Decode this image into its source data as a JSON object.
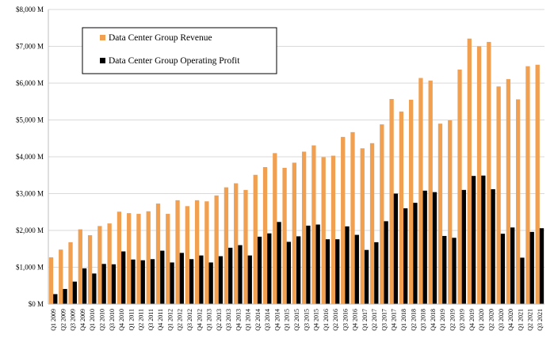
{
  "chart_data": {
    "type": "bar",
    "title": "",
    "xlabel": "",
    "ylabel": "",
    "ylim": [
      0,
      8000
    ],
    "y_ticks": [
      "$0 M",
      "$1,000 M",
      "$2,000 M",
      "$3,000 M",
      "$4,000 M",
      "$5,000 M",
      "$6,000 M",
      "$7,000 M",
      "$8,000 M"
    ],
    "y_tick_values": [
      0,
      1000,
      2000,
      3000,
      4000,
      5000,
      6000,
      7000,
      8000
    ],
    "grid": true,
    "legend_position": "top-left",
    "categories": [
      "Q1 2009",
      "Q2 2009",
      "Q3 2009",
      "Q4 2009",
      "Q1 2010",
      "Q2 2010",
      "Q3 2010",
      "Q4 2010",
      "Q1 2011",
      "Q2 2011",
      "Q3 2011",
      "Q4 2011",
      "Q1 2012",
      "Q2 2012",
      "Q3 2012",
      "Q4 2012",
      "Q1 2013",
      "Q2 2013",
      "Q3 2013",
      "Q4 2013",
      "Q1 2014",
      "Q2 2014",
      "Q3 2014",
      "Q4 2014",
      "Q1 2015",
      "Q2 2015",
      "Q3 2015",
      "Q4 2015",
      "Q1 2016",
      "Q2 2016",
      "Q3 2016",
      "Q4 2016",
      "Q1 2017",
      "Q2 2017",
      "Q3 2017",
      "Q4 2017",
      "Q1 2018",
      "Q2 2018",
      "Q3 2018",
      "Q4 2018",
      "Q1 2019",
      "Q2 2019",
      "Q3 2019",
      "Q4 2019",
      "Q1 2020",
      "Q2 2020",
      "Q3 2020",
      "Q4 2020",
      "Q1 2021",
      "Q2 2021",
      "Q3 2021"
    ],
    "series": [
      {
        "name": "Data Center Group Revenue",
        "color": "#f0a050",
        "values": [
          1270,
          1480,
          1680,
          2030,
          1870,
          2120,
          2190,
          2510,
          2470,
          2450,
          2520,
          2730,
          2450,
          2820,
          2660,
          2820,
          2790,
          2950,
          3170,
          3280,
          3100,
          3510,
          3720,
          4100,
          3700,
          3840,
          4140,
          4310,
          3990,
          4030,
          4540,
          4670,
          4230,
          4370,
          4880,
          5570,
          5230,
          5550,
          6140,
          6070,
          4900,
          4990,
          6370,
          7210,
          7000,
          7120,
          5910,
          6110,
          5560,
          6460,
          6500
        ]
      },
      {
        "name": "Data Center Group Operating Profit",
        "color": "#000000",
        "values": [
          270,
          410,
          610,
          970,
          830,
          1090,
          1080,
          1430,
          1210,
          1190,
          1220,
          1450,
          1130,
          1390,
          1220,
          1320,
          1130,
          1300,
          1530,
          1600,
          1320,
          1830,
          1920,
          2230,
          1690,
          1840,
          2130,
          2160,
          1760,
          1760,
          2110,
          1880,
          1470,
          1680,
          2250,
          3000,
          2600,
          2750,
          3080,
          3040,
          1850,
          1800,
          3100,
          3480,
          3490,
          3120,
          1910,
          2080,
          1260,
          1960,
          2060
        ]
      }
    ]
  }
}
